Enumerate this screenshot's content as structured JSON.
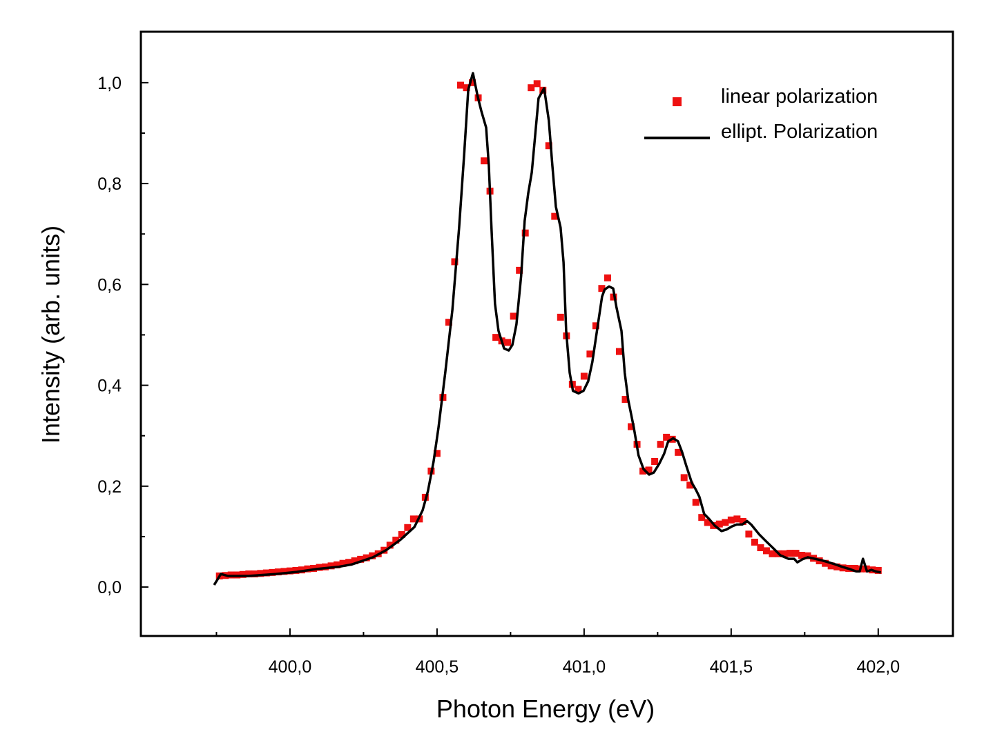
{
  "chart_data": {
    "type": "scatter",
    "title": "",
    "xlabel": "Photon Energy (eV)",
    "ylabel": "Intensity (arb. units)",
    "xlim": [
      399.493,
      402.254
    ],
    "ylim": [
      -0.097,
      1.101
    ],
    "grid": false,
    "legend_position": "top-right",
    "x_ticks": [
      {
        "value": 400.0,
        "label": "400,0"
      },
      {
        "value": 400.5,
        "label": "400,5"
      },
      {
        "value": 401.0,
        "label": "401,0"
      },
      {
        "value": 401.5,
        "label": "401,5"
      },
      {
        "value": 402.0,
        "label": "402,0"
      }
    ],
    "x_minor_ticks": [
      399.75,
      400.25,
      400.75,
      401.25,
      401.75
    ],
    "y_ticks": [
      {
        "value": 0.0,
        "label": "0,0"
      },
      {
        "value": 0.2,
        "label": "0,2"
      },
      {
        "value": 0.4,
        "label": "0,4"
      },
      {
        "value": 0.6,
        "label": "0,6"
      },
      {
        "value": 0.8,
        "label": "0,8"
      },
      {
        "value": 1.0,
        "label": "1,0"
      }
    ],
    "y_minor_ticks": [
      0.1,
      0.3,
      0.5,
      0.7,
      0.9
    ],
    "series": [
      {
        "name": "linear polarization",
        "kind": "scatter",
        "marker": "square",
        "color": "#ee1111",
        "x_start": 399.76,
        "x_step": 0.02,
        "y": [
          0.022,
          0.023,
          0.024,
          0.024,
          0.025,
          0.026,
          0.026,
          0.027,
          0.028,
          0.029,
          0.03,
          0.031,
          0.032,
          0.033,
          0.034,
          0.036,
          0.037,
          0.039,
          0.04,
          0.042,
          0.044,
          0.047,
          0.049,
          0.052,
          0.055,
          0.058,
          0.062,
          0.066,
          0.073,
          0.083,
          0.093,
          0.104,
          0.118,
          0.135,
          0.135,
          0.178,
          0.23,
          0.265,
          0.376,
          0.525,
          0.645,
          0.995,
          0.99,
          1.0,
          0.97,
          0.845,
          0.785,
          0.495,
          0.488,
          0.485,
          0.537,
          0.628,
          0.702,
          0.99,
          0.998,
          0.985,
          0.875,
          0.735,
          0.535,
          0.498,
          0.402,
          0.392,
          0.418,
          0.462,
          0.518,
          0.592,
          0.613,
          0.575,
          0.467,
          0.372,
          0.318,
          0.283,
          0.23,
          0.232,
          0.249,
          0.283,
          0.297,
          0.293,
          0.267,
          0.217,
          0.202,
          0.168,
          0.138,
          0.128,
          0.122,
          0.125,
          0.128,
          0.133,
          0.135,
          0.13,
          0.105,
          0.089,
          0.078,
          0.072,
          0.066,
          0.066,
          0.066,
          0.067,
          0.067,
          0.063,
          0.062,
          0.057,
          0.052,
          0.047,
          0.042,
          0.04,
          0.038,
          0.037,
          0.037,
          0.036,
          0.036,
          0.034,
          0.033
        ]
      },
      {
        "name": "ellipt. Polarization",
        "kind": "line",
        "color": "#000000",
        "points": [
          [
            399.742,
            0.004
          ],
          [
            399.765,
            0.026
          ],
          [
            399.789,
            0.022
          ],
          [
            399.859,
            0.022
          ],
          [
            399.953,
            0.026
          ],
          [
            400.023,
            0.03
          ],
          [
            400.094,
            0.036
          ],
          [
            400.164,
            0.04
          ],
          [
            400.211,
            0.045
          ],
          [
            400.282,
            0.059
          ],
          [
            400.329,
            0.074
          ],
          [
            400.376,
            0.094
          ],
          [
            400.423,
            0.119
          ],
          [
            400.451,
            0.152
          ],
          [
            400.469,
            0.19
          ],
          [
            400.488,
            0.248
          ],
          [
            400.505,
            0.316
          ],
          [
            400.528,
            0.425
          ],
          [
            400.552,
            0.549
          ],
          [
            400.575,
            0.713
          ],
          [
            400.592,
            0.856
          ],
          [
            400.606,
            0.986
          ],
          [
            400.622,
            1.019
          ],
          [
            400.638,
            0.973
          ],
          [
            400.65,
            0.945
          ],
          [
            400.667,
            0.911
          ],
          [
            400.676,
            0.836
          ],
          [
            400.685,
            0.713
          ],
          [
            400.697,
            0.562
          ],
          [
            400.709,
            0.508
          ],
          [
            400.728,
            0.473
          ],
          [
            400.744,
            0.469
          ],
          [
            400.756,
            0.48
          ],
          [
            400.77,
            0.521
          ],
          [
            400.786,
            0.617
          ],
          [
            400.798,
            0.726
          ],
          [
            400.81,
            0.781
          ],
          [
            400.822,
            0.822
          ],
          [
            400.833,
            0.891
          ],
          [
            400.845,
            0.969
          ],
          [
            400.864,
            0.989
          ],
          [
            400.88,
            0.925
          ],
          [
            400.892,
            0.836
          ],
          [
            400.904,
            0.754
          ],
          [
            400.92,
            0.713
          ],
          [
            400.93,
            0.644
          ],
          [
            400.939,
            0.508
          ],
          [
            400.951,
            0.425
          ],
          [
            400.962,
            0.389
          ],
          [
            400.981,
            0.384
          ],
          [
            400.998,
            0.389
          ],
          [
            401.014,
            0.408
          ],
          [
            401.028,
            0.446
          ],
          [
            401.047,
            0.521
          ],
          [
            401.061,
            0.576
          ],
          [
            401.07,
            0.59
          ],
          [
            401.085,
            0.596
          ],
          [
            401.099,
            0.592
          ],
          [
            401.11,
            0.555
          ],
          [
            401.127,
            0.508
          ],
          [
            401.138,
            0.425
          ],
          [
            401.15,
            0.371
          ],
          [
            401.169,
            0.316
          ],
          [
            401.185,
            0.261
          ],
          [
            401.202,
            0.234
          ],
          [
            401.221,
            0.223
          ],
          [
            401.237,
            0.227
          ],
          [
            401.256,
            0.245
          ],
          [
            401.272,
            0.264
          ],
          [
            401.286,
            0.289
          ],
          [
            401.303,
            0.295
          ],
          [
            401.319,
            0.289
          ],
          [
            401.333,
            0.268
          ],
          [
            401.347,
            0.241
          ],
          [
            401.366,
            0.207
          ],
          [
            401.38,
            0.193
          ],
          [
            401.392,
            0.179
          ],
          [
            401.408,
            0.145
          ],
          [
            401.425,
            0.135
          ],
          [
            401.444,
            0.122
          ],
          [
            401.467,
            0.111
          ],
          [
            401.484,
            0.114
          ],
          [
            401.502,
            0.12
          ],
          [
            401.519,
            0.124
          ],
          [
            401.538,
            0.124
          ],
          [
            401.554,
            0.131
          ],
          [
            401.568,
            0.124
          ],
          [
            401.596,
            0.104
          ],
          [
            401.62,
            0.09
          ],
          [
            401.643,
            0.077
          ],
          [
            401.667,
            0.063
          ],
          [
            401.695,
            0.056
          ],
          [
            401.714,
            0.056
          ],
          [
            401.725,
            0.049
          ],
          [
            401.742,
            0.055
          ],
          [
            401.761,
            0.059
          ],
          [
            401.784,
            0.056
          ],
          [
            401.808,
            0.053
          ],
          [
            401.831,
            0.049
          ],
          [
            401.854,
            0.045
          ],
          [
            401.878,
            0.04
          ],
          [
            401.901,
            0.036
          ],
          [
            401.925,
            0.031
          ],
          [
            401.937,
            0.031
          ],
          [
            401.948,
            0.056
          ],
          [
            401.962,
            0.031
          ],
          [
            401.977,
            0.034
          ],
          [
            401.991,
            0.031
          ],
          [
            402.009,
            0.029
          ]
        ]
      }
    ]
  }
}
